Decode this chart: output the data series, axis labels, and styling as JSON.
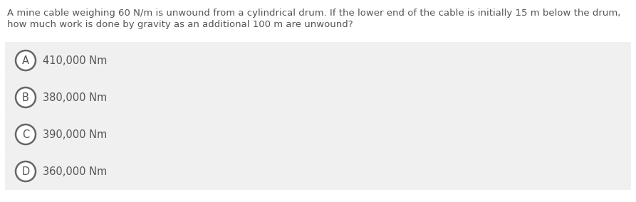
{
  "question_line1": "A mine cable weighing 60 N/m is unwound from a cylindrical drum. If the lower end of the cable is initially 15 m below the drum,",
  "question_line2": "how much work is done by gravity as an additional 100 m are unwound?",
  "options": [
    {
      "label": "A",
      "text": "410,000 Nm"
    },
    {
      "label": "B",
      "text": "380,000 Nm"
    },
    {
      "label": "C",
      "text": "390,000 Nm"
    },
    {
      "label": "D",
      "text": "360,000 Nm"
    }
  ],
  "bg_color": "#ffffff",
  "option_bg_color": "#f0f0f0",
  "option_border_color": "#ffffff",
  "text_color": "#555555",
  "circle_edge_color": "#666666",
  "circle_face_color": "#ffffff",
  "question_fontsize": 9.5,
  "option_fontsize": 10.5,
  "label_fontsize": 10.5,
  "fig_width": 8.93,
  "fig_height": 2.84,
  "dpi": 100
}
